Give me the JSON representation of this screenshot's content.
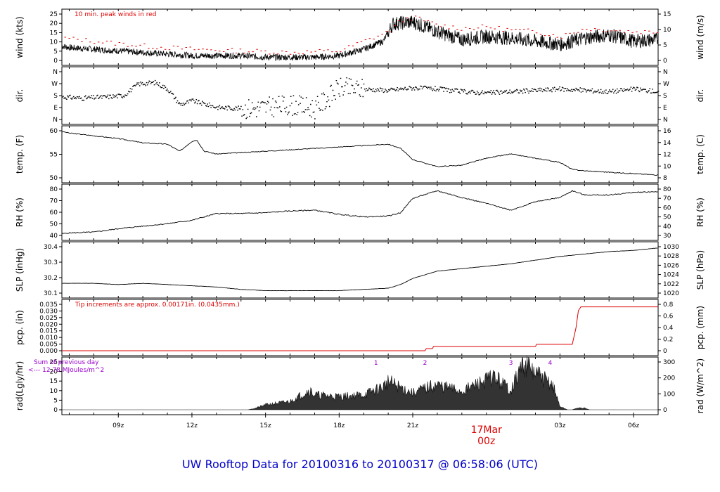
{
  "title": "UW Rooftop Data for 20100316  to  20100317 @ 06:58:06  (UTC)",
  "colors": {
    "axis": "#000000",
    "red": "#dd0000",
    "purple": "#9900cc",
    "blue": "#0000cc",
    "fill": "#333333"
  },
  "x_axis": {
    "ticks": [
      {
        "h": 9,
        "label": "09z"
      },
      {
        "h": 12,
        "label": "12z"
      },
      {
        "h": 15,
        "label": "15z"
      },
      {
        "h": 18,
        "label": "18z"
      },
      {
        "h": 21,
        "label": "21z"
      },
      {
        "h": 27,
        "label": "03z"
      },
      {
        "h": 30,
        "label": "06z"
      }
    ],
    "date_label": "17Mar",
    "date_sub": "00z",
    "date_h": 24
  },
  "panels": [
    {
      "id": "wind",
      "left_label": "wind (kts)",
      "right_label": "wind (m/s)",
      "left_ticks": [
        "0",
        "5",
        "10",
        "15",
        "20",
        "25"
      ],
      "right_ticks": [
        "0",
        "5",
        "10",
        "15"
      ],
      "note": "10 min. peak winds in red",
      "ylim": [
        0,
        29
      ]
    },
    {
      "id": "dir",
      "left_label": "dir.",
      "right_label": "dir.",
      "left_ticks": [
        "N",
        "E",
        "S",
        "W",
        "N"
      ],
      "right_ticks": [
        "N",
        "E",
        "S",
        "W",
        "N"
      ]
    },
    {
      "id": "temp",
      "left_label": "temp. (F)",
      "right_label": "temp. (C)",
      "left_ticks": [
        "50",
        "55",
        "60"
      ],
      "right_ticks": [
        "8",
        "10",
        "12",
        "14",
        "16"
      ],
      "ylim": [
        45.5,
        62.3
      ]
    },
    {
      "id": "rh",
      "left_label": "RH (%)",
      "right_label": "RH (%)",
      "left_ticks": [
        "40",
        "50",
        "60",
        "70",
        "80"
      ],
      "right_ticks": [
        "30",
        "40",
        "50",
        "60",
        "70",
        "80"
      ],
      "ylim": [
        30,
        85
      ]
    },
    {
      "id": "slp",
      "left_label": "SLP (inHg)",
      "right_label": "SLP (hPa)",
      "left_ticks": [
        "30.1",
        "30.2",
        "30.3",
        "30.4"
      ],
      "right_ticks": [
        "1020",
        "1022",
        "1024",
        "1026",
        "1028",
        "1030"
      ],
      "ylim": [
        30.08,
        30.46
      ]
    },
    {
      "id": "pcp",
      "left_label": "pcp. (in)",
      "right_label": "pcp. (mm)",
      "left_ticks": [
        "0.000",
        "0.005",
        "0.010",
        "0.015",
        "0.020",
        "0.025",
        "0.030",
        "0.035"
      ],
      "right_ticks": [
        "0",
        "0.2",
        "0.4",
        "0.6",
        "0.8"
      ],
      "note": "Tip increments are approx. 0.00171in. (0.0435mm.)",
      "ylim": [
        0,
        0.037
      ]
    },
    {
      "id": "rad",
      "left_label": "rad(Lgly/hr)",
      "right_label": "rad (W/m^2)",
      "left_ticks": [
        "0",
        "5",
        "10",
        "15",
        "20",
        "25"
      ],
      "right_ticks": [
        "0",
        "100",
        "200",
        "300"
      ],
      "note1": "Sum of previous day",
      "note2": "<--- 12.78 MJoules/m^2",
      "markers": [
        {
          "h": 19.5,
          "label": "1"
        },
        {
          "h": 21.5,
          "label": "2"
        },
        {
          "h": 25.0,
          "label": "3"
        },
        {
          "h": 26.6,
          "label": "4"
        }
      ],
      "ylim": [
        0,
        29
      ]
    }
  ],
  "chart_data": {
    "type": "line",
    "x_unit": "hours UTC from 20100316 00z",
    "xlim": [
      6.7,
      31.0
    ],
    "series": [
      {
        "name": "wind (kts)",
        "x": [
          6.7,
          7,
          8,
          9,
          10,
          11,
          12,
          13,
          14,
          15,
          16,
          17,
          18,
          19,
          19.8,
          20.2,
          21,
          22,
          23,
          24,
          25,
          26,
          27,
          28,
          29,
          30,
          31
        ],
        "values": [
          9,
          8,
          7,
          6,
          5,
          4,
          3,
          3,
          3,
          2,
          2,
          2,
          3,
          7,
          12,
          23,
          24,
          18,
          13,
          15,
          14,
          12,
          10,
          14,
          16,
          12,
          13
        ]
      },
      {
        "name": "wind peak (kts)",
        "x": [
          6.7,
          8,
          10,
          12,
          14,
          16,
          18,
          19,
          20,
          20.5,
          21,
          22,
          23,
          24,
          25,
          26,
          27,
          28,
          29,
          30,
          31
        ],
        "values": [
          14,
          12,
          9,
          7,
          6,
          5,
          6,
          12,
          18,
          25,
          27,
          22,
          20,
          21,
          19,
          18,
          15,
          20,
          19,
          18,
          18
        ]
      },
      {
        "name": "dir (compass index 0=N,1=E,2=S,3=W,4=N)",
        "x": [
          6.7,
          7.5,
          8.5,
          9.2,
          9.8,
          10.5,
          11,
          11.5,
          12,
          13,
          14,
          15,
          16,
          17,
          18,
          19,
          20,
          21,
          22,
          23,
          24,
          25,
          26,
          27,
          28,
          29,
          30,
          31
        ],
        "values": [
          1.9,
          1.8,
          1.9,
          2.0,
          2.9,
          3.0,
          2.5,
          1.3,
          1.6,
          1.1,
          1.0,
          1.1,
          1.3,
          1.0,
          2.6,
          2.5,
          2.4,
          2.6,
          2.5,
          2.3,
          2.2,
          2.3,
          2.4,
          2.5,
          2.4,
          2.3,
          2.5,
          2.3
        ]
      },
      {
        "name": "temp (F)",
        "x": [
          6.7,
          7,
          8,
          9,
          10,
          11,
          11.5,
          12,
          12.2,
          12.5,
          13,
          14,
          15,
          16,
          17,
          18,
          19,
          20,
          20.5,
          21,
          22,
          23,
          24,
          25,
          26,
          27,
          27.5,
          28,
          29,
          30,
          31
        ],
        "values": [
          62,
          61.5,
          60.5,
          59.5,
          58,
          57.5,
          55,
          58.5,
          59,
          55,
          54,
          54.5,
          55,
          55.5,
          56,
          56.5,
          57,
          57.5,
          56,
          52,
          49.5,
          50,
          52.5,
          54,
          52.5,
          51,
          48.5,
          48,
          47.5,
          47,
          46.5
        ]
      },
      {
        "name": "RH (%)",
        "x": [
          6.7,
          7,
          8,
          9,
          10,
          11,
          12,
          12.5,
          13,
          14,
          15,
          16,
          17,
          18,
          19,
          20,
          20.5,
          21,
          22,
          23,
          24,
          25,
          26,
          27,
          27.5,
          28,
          29,
          30,
          31
        ],
        "values": [
          32,
          33,
          34,
          38,
          41,
          44,
          48,
          52,
          56,
          56,
          57,
          59,
          60,
          55,
          52,
          53,
          57,
          74,
          83,
          75,
          68,
          60,
          70,
          75,
          83,
          78,
          78,
          81,
          82
        ]
      },
      {
        "name": "SLP (inHg)",
        "x": [
          6.7,
          8,
          9,
          10,
          11,
          12,
          13,
          14,
          15,
          16,
          17,
          18,
          19,
          20,
          20.5,
          21,
          22,
          23,
          24,
          25,
          26,
          27,
          28,
          29,
          30,
          31
        ],
        "values": [
          30.16,
          30.16,
          30.15,
          30.16,
          30.15,
          30.14,
          30.13,
          30.11,
          30.1,
          30.1,
          30.1,
          30.1,
          30.11,
          30.12,
          30.15,
          30.2,
          30.26,
          30.28,
          30.3,
          30.32,
          30.35,
          30.38,
          30.4,
          30.42,
          30.43,
          30.45
        ]
      },
      {
        "name": "pcp (in)",
        "x": [
          6.7,
          21.5,
          21.55,
          21.8,
          21.85,
          26.0,
          26.05,
          27.5,
          27.65,
          27.75,
          27.85,
          31.0
        ],
        "values": [
          0,
          0,
          0.0017,
          0.0017,
          0.0034,
          0.0034,
          0.0051,
          0.0051,
          0.018,
          0.032,
          0.035,
          0.035
        ]
      },
      {
        "name": "rad (Lgly/hr)",
        "x": [
          6.7,
          14.3,
          14.6,
          15,
          16,
          16.8,
          17,
          18,
          19,
          19.8,
          20,
          21,
          21.5,
          22,
          23,
          24,
          24.3,
          25,
          25.5,
          26,
          26.7,
          27,
          27.3,
          27.5,
          27.7,
          28,
          28.2,
          31
        ],
        "values": [
          0,
          0,
          1,
          3,
          5,
          12,
          9,
          8,
          9,
          14,
          17,
          10,
          13,
          15,
          11,
          18,
          20,
          12,
          28,
          22,
          15,
          2,
          0,
          0,
          1,
          1,
          0,
          0
        ]
      }
    ]
  }
}
